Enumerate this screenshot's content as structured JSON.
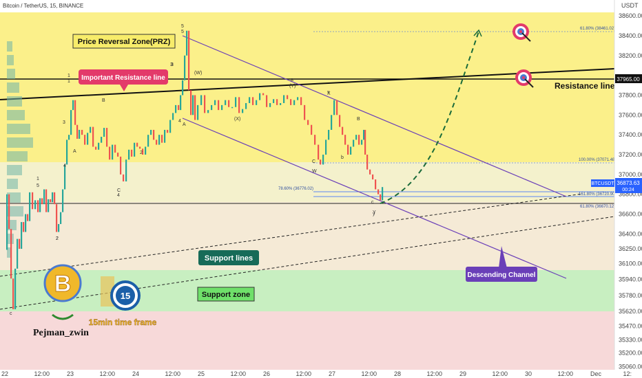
{
  "header": {
    "pair": "Bitcoin / TetherUS, 15, BINANCE",
    "currency": "USDT"
  },
  "colors": {
    "prz_zone": "#fbf08a",
    "resistance_zone": "#f4f1cc",
    "support_zone": "#c8efc1",
    "lower_zone": "#f7d9d9",
    "channel": "#6a3fb8",
    "projection": "#1a6b3a",
    "price_badge": "#2962ff"
  },
  "chart_data": {
    "type": "line",
    "symbol": "BTCUSDT",
    "timeframe": "15",
    "ylim": [
      35030,
      38760
    ],
    "y_ticks": [
      38600,
      38400,
      38200,
      37965,
      37800,
      37600,
      37400,
      37200,
      37000,
      36800,
      36600,
      36400,
      36250,
      36100,
      35940,
      35780,
      35620,
      35470,
      35330,
      35200,
      35060
    ],
    "x_ticks": [
      "22",
      "12:00",
      "23",
      "12:00",
      "24",
      "12:00",
      "25",
      "12:00",
      "26",
      "12:00",
      "27",
      "12:00",
      "28",
      "12:00",
      "29",
      "12:00",
      "30",
      "12:00",
      "Dec",
      "12:"
    ],
    "last_price": {
      "label": "BTCUSDT",
      "value": "36873.63",
      "countdown": "00:24"
    },
    "resistance_label": {
      "value": "37965.00"
    },
    "fib_levels": [
      {
        "label": "61.80% (38461.02)",
        "value": 38461.02
      },
      {
        "label": "100.00% (37071.48)",
        "value": 37071.48
      },
      {
        "label": "78.60% (36776.02)",
        "value": 36776.02
      },
      {
        "label": "161.80% (36720.90)",
        "value": 36720.9
      },
      {
        "label": "61.80% (36670.12)",
        "value": 36670.12
      }
    ],
    "series": [
      {
        "values": [
          [
            0,
            36240
          ],
          [
            3,
            36800
          ],
          [
            6,
            36450
          ],
          [
            9,
            35950
          ],
          [
            12,
            35640
          ],
          [
            15,
            36050
          ],
          [
            18,
            36350
          ],
          [
            21,
            36250
          ],
          [
            24,
            36520
          ],
          [
            27,
            36420
          ],
          [
            30,
            36600
          ],
          [
            33,
            36530
          ],
          [
            36,
            36820
          ],
          [
            40,
            36650
          ],
          [
            44,
            36740
          ],
          [
            48,
            36620
          ],
          [
            51,
            36760
          ],
          [
            54,
            36700
          ],
          [
            57,
            36850
          ],
          [
            60,
            36620
          ],
          [
            63,
            36750
          ],
          [
            66,
            36720
          ],
          [
            69,
            36820
          ],
          [
            72,
            36700
          ],
          [
            75,
            36420
          ],
          [
            78,
            36500
          ],
          [
            81,
            36620
          ],
          [
            84,
            36850
          ],
          [
            87,
            37100
          ],
          [
            90,
            37350
          ],
          [
            93,
            37400
          ],
          [
            96,
            37650
          ],
          [
            99,
            37750
          ],
          [
            102,
            37500
          ],
          [
            105,
            37360
          ],
          [
            108,
            37450
          ],
          [
            112,
            37400
          ],
          [
            116,
            37300
          ],
          [
            120,
            37420
          ],
          [
            124,
            37480
          ],
          [
            128,
            37280
          ],
          [
            132,
            37250
          ],
          [
            136,
            37320
          ],
          [
            140,
            37380
          ],
          [
            144,
            37470
          ],
          [
            148,
            37280
          ],
          [
            152,
            37150
          ],
          [
            156,
            37300
          ],
          [
            160,
            37220
          ],
          [
            164,
            37180
          ],
          [
            168,
            37000
          ],
          [
            172,
            36930
          ],
          [
            176,
            37150
          ],
          [
            180,
            37250
          ],
          [
            184,
            37180
          ],
          [
            188,
            37320
          ],
          [
            192,
            37280
          ],
          [
            196,
            37260
          ],
          [
            200,
            37200
          ],
          [
            204,
            37280
          ],
          [
            208,
            37400
          ],
          [
            212,
            37450
          ],
          [
            216,
            37350
          ],
          [
            220,
            37300
          ],
          [
            224,
            37400
          ],
          [
            228,
            37320
          ],
          [
            232,
            37450
          ],
          [
            236,
            37420
          ],
          [
            240,
            37550
          ],
          [
            244,
            37620
          ],
          [
            248,
            37700
          ],
          [
            252,
            37650
          ],
          [
            255,
            37800
          ],
          [
            258,
            37950
          ],
          [
            261,
            38200
          ],
          [
            264,
            38450
          ],
          [
            267,
            37850
          ],
          [
            270,
            37600
          ],
          [
            273,
            37800
          ],
          [
            276,
            37550
          ],
          [
            280,
            37700
          ],
          [
            285,
            37800
          ],
          [
            290,
            37620
          ],
          [
            295,
            37650
          ],
          [
            300,
            37700
          ],
          [
            305,
            37750
          ],
          [
            310,
            37650
          ],
          [
            315,
            37700
          ],
          [
            320,
            37750
          ],
          [
            325,
            37680
          ],
          [
            330,
            37680
          ],
          [
            335,
            37780
          ],
          [
            340,
            37620
          ],
          [
            345,
            37660
          ],
          [
            350,
            37720
          ],
          [
            355,
            37780
          ],
          [
            360,
            37700
          ],
          [
            365,
            37750
          ],
          [
            370,
            37820
          ],
          [
            375,
            37800
          ],
          [
            380,
            37680
          ],
          [
            385,
            37720
          ],
          [
            390,
            37760
          ],
          [
            395,
            37700
          ],
          [
            400,
            37720
          ],
          [
            405,
            37800
          ],
          [
            410,
            37760
          ],
          [
            415,
            37700
          ],
          [
            420,
            37750
          ],
          [
            425,
            37780
          ],
          [
            430,
            37700
          ],
          [
            435,
            37550
          ],
          [
            440,
            37500
          ],
          [
            445,
            37400
          ],
          [
            450,
            37300
          ],
          [
            455,
            37150
          ],
          [
            458,
            37100
          ],
          [
            462,
            37200
          ],
          [
            466,
            37350
          ],
          [
            470,
            37450
          ],
          [
            474,
            37600
          ],
          [
            478,
            37750
          ],
          [
            482,
            37600
          ],
          [
            486,
            37480
          ],
          [
            490,
            37400
          ],
          [
            494,
            37300
          ],
          [
            498,
            37200
          ],
          [
            502,
            37280
          ],
          [
            506,
            37350
          ],
          [
            510,
            37400
          ],
          [
            514,
            37300
          ],
          [
            518,
            37350
          ],
          [
            521,
            37450
          ],
          [
            523,
            37200
          ],
          [
            526,
            37050
          ],
          [
            530,
            37000
          ],
          [
            534,
            36950
          ],
          [
            538,
            36850
          ],
          [
            542,
            36800
          ],
          [
            545,
            36740
          ],
          [
            548,
            36873
          ]
        ]
      }
    ]
  },
  "annotations": {
    "prz": "Price Reversal Zone(PRZ)",
    "important_resistance": "Important Resistance line",
    "resistance_line": "Resistance line",
    "support_lines": "Support lines",
    "support_zone": "Support zone",
    "descending_channel": "Descending Channel"
  },
  "wave_labels": [
    "5",
    "1",
    "A",
    "B",
    "C",
    "4",
    "3",
    "2",
    "1",
    "2",
    "3",
    "4",
    "5",
    "(W)",
    "(X)",
    "(Y)",
    "W",
    "X",
    "Y",
    "A",
    "B",
    "C",
    "a",
    "b",
    "c",
    "x",
    "y",
    "1",
    "2",
    "3",
    "4",
    "5",
    "c"
  ],
  "branding": {
    "author": "Pejman_zwin",
    "timeframe_badge": "15min time frame",
    "clock_number": "15"
  }
}
